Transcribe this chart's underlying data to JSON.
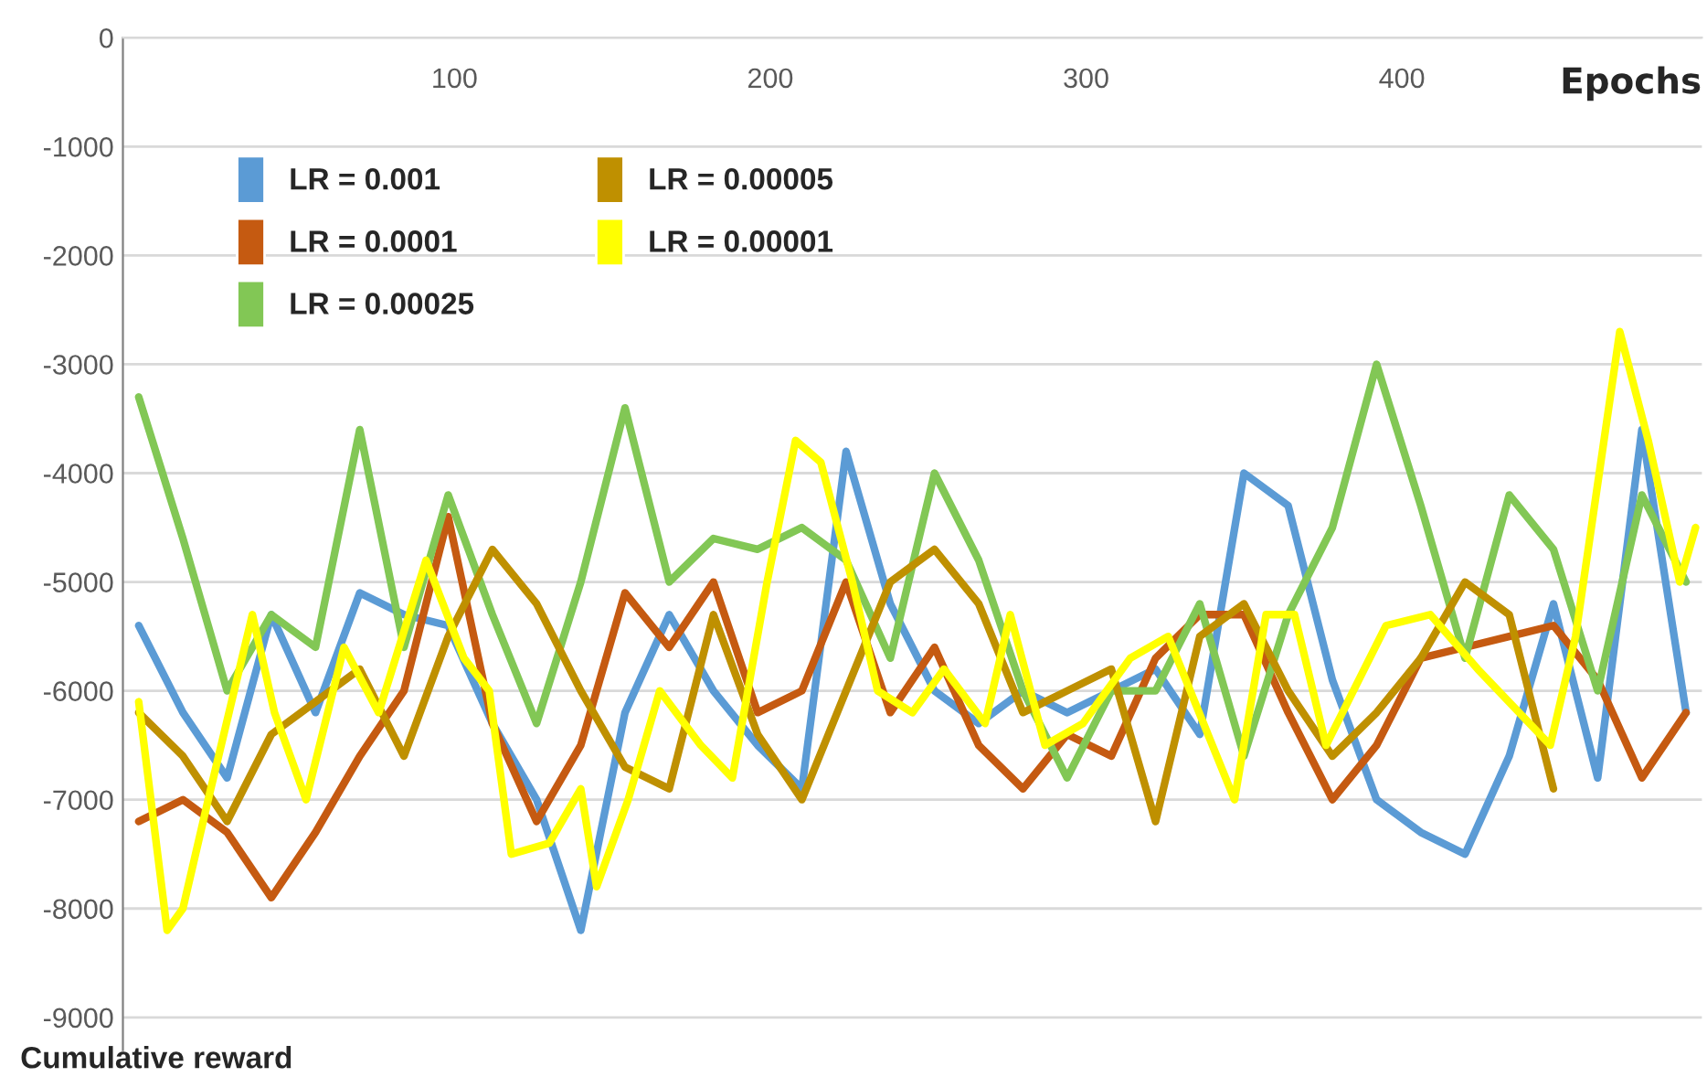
{
  "chart_data": {
    "type": "line",
    "xlabel": "Epochs",
    "ylabel": "Cumulative reward",
    "x": [
      0,
      14,
      28,
      42,
      56,
      70,
      84,
      98,
      112,
      126,
      140,
      154,
      168,
      182,
      196,
      210,
      224,
      238,
      252,
      266,
      280,
      294,
      308,
      322,
      336,
      350,
      364,
      378,
      392,
      406,
      420,
      434,
      448,
      462,
      476,
      490
    ],
    "xlim": [
      -5,
      495
    ],
    "xticks": [
      100,
      200,
      300,
      400
    ],
    "ylim": [
      -9300,
      0
    ],
    "yticks": [
      0,
      -1000,
      -2000,
      -3000,
      -4000,
      -5000,
      -6000,
      -7000,
      -8000,
      -9000
    ],
    "grid": "y",
    "legend": "top left",
    "marker": "none",
    "line_style": "solid",
    "series": [
      {
        "name": "LR = 0.001",
        "color": "#5b9bd5",
        "values": [
          -5400,
          -6200,
          -6800,
          -5300,
          -6200,
          -5100,
          -5300,
          -5400,
          -6300,
          -7000,
          -8200,
          -6200,
          -5300,
          -6000,
          -6500,
          -6900,
          -3800,
          -5200,
          -6000,
          -6300,
          -6000,
          -6200,
          -6000,
          -5800,
          -6400,
          -4000,
          -4300,
          -5900,
          -7000,
          -7300,
          -7500,
          -6600,
          -5200,
          -6800,
          -3600,
          -6200
        ]
      },
      {
        "name": "LR = 0.0001",
        "color": "#c55a11",
        "values": [
          -7200,
          -7000,
          -7300,
          -7900,
          -7300,
          -6600,
          -6000,
          -4400,
          -6300,
          -7200,
          -6500,
          -5100,
          -5600,
          -5000,
          -6200,
          -6000,
          -5000,
          -6200,
          -5600,
          -6500,
          -6900,
          -6400,
          -6600,
          -5700,
          -5300,
          -5300,
          -6200,
          -7000,
          -6500,
          -5700,
          -5600,
          -5500,
          -5400,
          -5900,
          -6800,
          -6200
        ]
      },
      {
        "name": "LR = 0.00025",
        "color": "#82c755",
        "values": [
          -3300,
          -4600,
          -6000,
          -5300,
          -5600,
          -3600,
          -5600,
          -4200,
          -5300,
          -6300,
          -5000,
          -3400,
          -5000,
          -4600,
          -4700,
          -4500,
          -4800,
          -5700,
          -4000,
          -4800,
          -6000,
          -6800,
          -6000,
          -6000,
          -5200,
          -6600,
          -5300,
          -4500,
          -3000,
          -4300,
          -5700,
          -4200,
          -4700,
          -6000,
          -4200,
          -5000
        ]
      },
      {
        "name": "LR = 0.00005",
        "color": "#bf9000",
        "values": [
          -6200,
          -6600,
          -7200,
          -6400,
          -6100,
          -5800,
          -6600,
          -5500,
          -4700,
          -5200,
          -6000,
          -6700,
          -6900,
          -5300,
          -6400,
          -7000,
          -6000,
          -5000,
          -4700,
          -5200,
          -6200,
          -6000,
          -5800,
          -7200,
          -5500,
          -5200,
          -6000,
          -6600,
          -6200,
          -5700,
          -5000,
          -5300,
          -6900,
          null,
          null,
          null
        ]
      },
      {
        "name": "LR = 0.00001",
        "color": "#ffff00",
        "x": [
          0,
          9,
          14,
          22,
          36,
          43,
          53,
          65,
          76,
          91,
          103,
          111,
          118,
          130,
          140,
          145,
          155,
          165,
          178,
          188,
          199,
          208,
          216,
          226,
          234,
          245,
          255,
          268,
          276,
          287,
          299,
          314,
          326,
          347,
          357,
          366,
          376,
          395,
          409,
          424,
          447,
          455,
          469,
          478,
          488,
          493
        ],
        "values": [
          -6100,
          -8200,
          -8000,
          -7000,
          -5300,
          -6200,
          -7000,
          -5600,
          -6200,
          -4800,
          -5700,
          -6000,
          -7500,
          -7400,
          -6900,
          -7800,
          -7000,
          -6000,
          -6500,
          -6800,
          -5000,
          -3700,
          -3900,
          -5000,
          -6000,
          -6200,
          -5800,
          -6300,
          -5300,
          -6500,
          -6300,
          -5700,
          -5500,
          -7000,
          -5300,
          -5300,
          -6500,
          -5400,
          -5300,
          -5800,
          -6500,
          -5500,
          -2700,
          -3700,
          -5000,
          -4500
        ]
      }
    ]
  }
}
